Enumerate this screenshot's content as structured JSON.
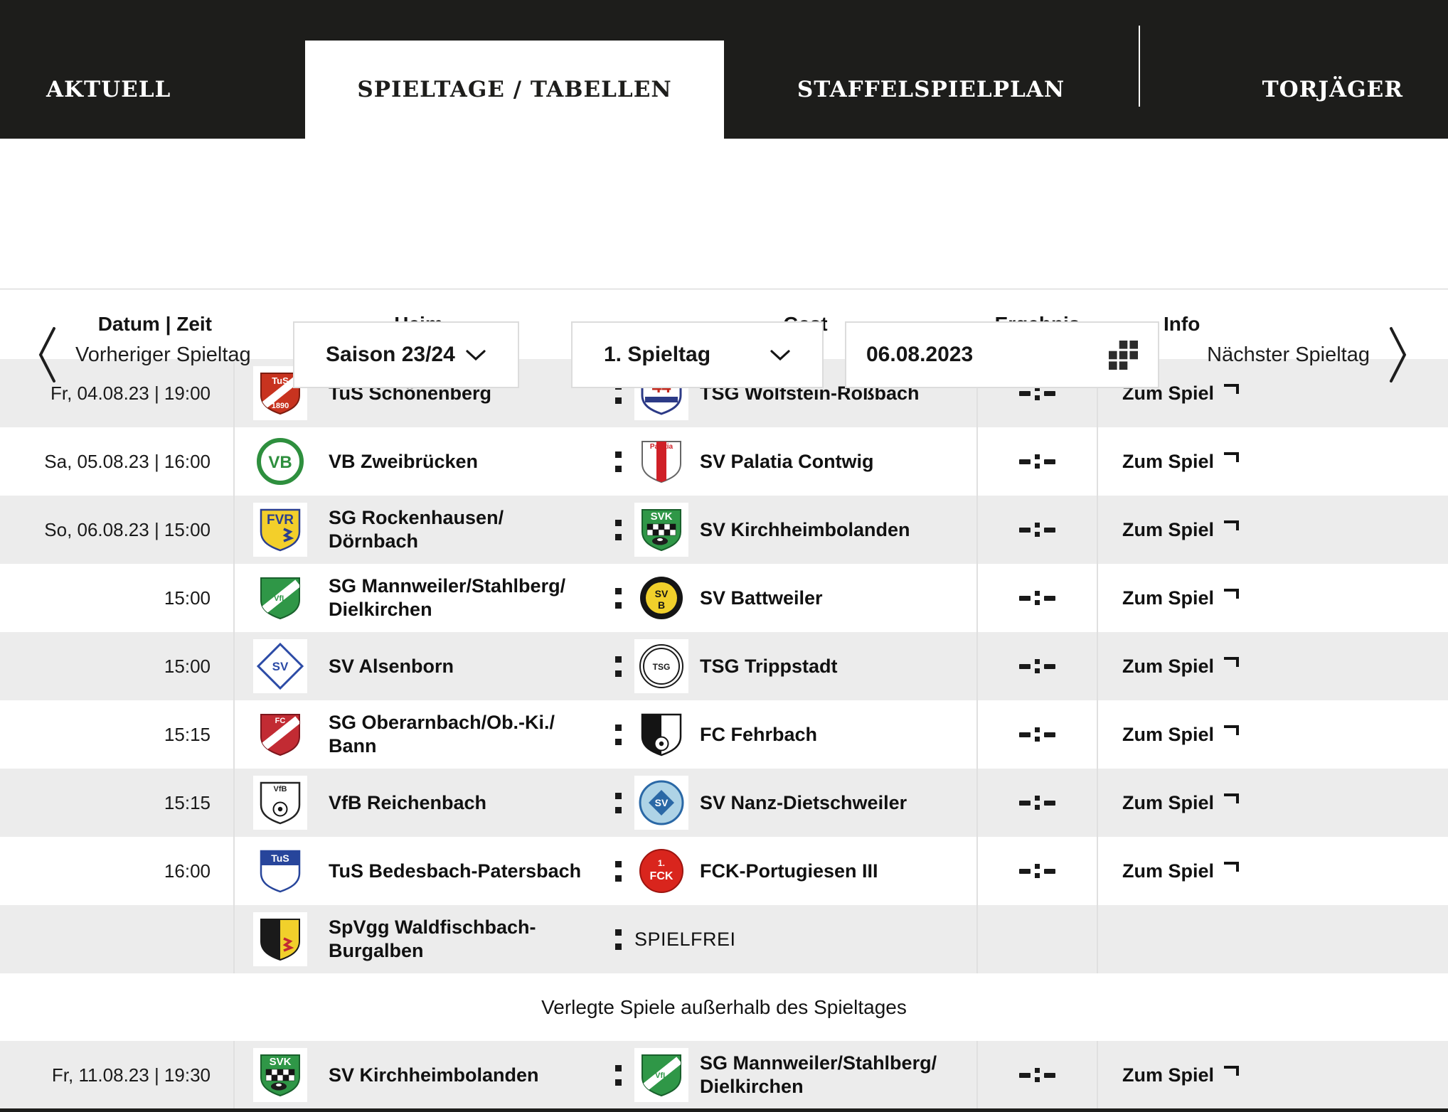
{
  "tabs": [
    {
      "label": "AKTUELL",
      "active": false
    },
    {
      "label": "SPIELTAGE / TABELLEN",
      "active": true
    },
    {
      "label": "STAFFELSPIELPLAN",
      "active": false
    },
    {
      "label": "TORJÄGER",
      "active": false
    }
  ],
  "nav": {
    "prev_label": "Vorheriger Spieltag",
    "next_label": "Nächster Spieltag",
    "season_value": "Saison 23/24",
    "matchday_value": "1. Spieltag",
    "date_value": "06.08.2023"
  },
  "icons": {
    "prev": "chevron-left-icon",
    "next": "chevron-right-icon",
    "select": "chevron-down-icon",
    "date": "calendar-grid-icon",
    "match_link": "corner-arrow-icon",
    "versus": "colon-separator"
  },
  "colors": {
    "header_bg": "#1d1d1b",
    "row_alt": "#ececec",
    "divider": "#e0e0e0",
    "border": "#dcdcdc",
    "text": "#161616"
  },
  "table": {
    "columns": {
      "datum": "Datum | Zeit",
      "heim": "Heim",
      "gast": "Gast",
      "ergebnis": "Ergebnis",
      "info": "Info"
    },
    "link_label": "Zum Spiel",
    "result_placeholder": "-:-",
    "spielfrei_label": "SPIELFREI",
    "postponed_heading": "Verlegte Spiele außerhalb des Spieltages",
    "rows": [
      {
        "datetime": "Fr, 04.08.23 | 19:00",
        "home": "TuS Schönenberg",
        "home_crest": "schoenenberg",
        "guest": "TSG Wolfstein-Roßbach",
        "guest_crest": "wolfstein",
        "result": "-:-",
        "info": "Zum Spiel"
      },
      {
        "datetime": "Sa, 05.08.23 | 16:00",
        "home": "VB Zweibrücken",
        "home_crest": "zweibruecken",
        "guest": "SV Palatia Contwig",
        "guest_crest": "palatia",
        "result": "-:-",
        "info": "Zum Spiel"
      },
      {
        "datetime": "So, 06.08.23 | 15:00",
        "home": "SG Rockenhausen/\nDörnbach",
        "home_crest": "rockenhausen",
        "guest": "SV Kirchheimbolanden",
        "guest_crest": "kirchheimbolanden",
        "result": "-:-",
        "info": "Zum Spiel"
      },
      {
        "datetime": "15:00",
        "home": "SG Mannweiler/Stahlberg/\nDielkirchen",
        "home_crest": "mannweiler",
        "guest": "SV Battweiler",
        "guest_crest": "battweiler",
        "result": "-:-",
        "info": "Zum Spiel"
      },
      {
        "datetime": "15:00",
        "home": "SV Alsenborn",
        "home_crest": "alsenborn",
        "guest": "TSG Trippstadt",
        "guest_crest": "trippstadt",
        "result": "-:-",
        "info": "Zum Spiel"
      },
      {
        "datetime": "15:15",
        "home": "SG Oberarnbach/Ob.-Ki./\nBann",
        "home_crest": "oberarnbach",
        "guest": "FC Fehrbach",
        "guest_crest": "fehrbach",
        "result": "-:-",
        "info": "Zum Spiel"
      },
      {
        "datetime": "15:15",
        "home": "VfB Reichenbach",
        "home_crest": "reichenbach",
        "guest": "SV Nanz-Dietschweiler",
        "guest_crest": "nanz",
        "result": "-:-",
        "info": "Zum Spiel"
      },
      {
        "datetime": "16:00",
        "home": "TuS Bedesbach-Patersbach",
        "home_crest": "bedesbach",
        "guest": "FCK-Portugiesen III",
        "guest_crest": "fck",
        "result": "-:-",
        "info": "Zum Spiel"
      },
      {
        "datetime": "",
        "home": "SpVgg Waldfischbach-\nBurgalben",
        "home_crest": "waldfischbach",
        "guest": "SPIELFREI",
        "guest_crest": null,
        "spielfrei": true,
        "result": "",
        "info": ""
      }
    ],
    "postponed_rows": [
      {
        "datetime": "Fr, 11.08.23 | 19:30",
        "home": "SV Kirchheimbolanden",
        "home_crest": "kirchheimbolanden",
        "guest": "SG Mannweiler/Stahlberg/\nDielkirchen",
        "guest_crest": "mannweiler",
        "result": "-:-",
        "info": "Zum Spiel"
      }
    ]
  },
  "crests": {
    "schoenenberg": {
      "shape": "shield",
      "bg": "#c8331f",
      "stroke": "#7d1d10",
      "sw": 2,
      "decos": [
        {
          "t": "diag",
          "c": "#ffffff",
          "w": 11
        }
      ],
      "labels": [
        {
          "t": "TuS",
          "c": "#ffffff",
          "s": 13,
          "y": 20
        },
        {
          "t": "1890",
          "c": "#ffffff",
          "s": 11,
          "y": 54
        }
      ]
    },
    "wolfstein": {
      "shape": "shield",
      "bg": "#ffffff",
      "stroke": "#2c3a86",
      "sw": 3,
      "decos": [
        {
          "t": "bandmid",
          "c": "#2c3a86"
        }
      ],
      "labels": [
        {
          "t": "44",
          "c": "#c2281d",
          "s": 24,
          "y": 32
        }
      ]
    },
    "zweibruecken": {
      "shape": "circle",
      "bg": "#ffffff",
      "stroke": "#2e8f3e",
      "sw": 6,
      "decos": [],
      "labels": [
        {
          "t": "VB",
          "c": "#2e8f3e",
          "s": 24,
          "y": 42
        }
      ]
    },
    "palatia": {
      "shape": "shield",
      "bg": "#ffffff",
      "stroke": "#666666",
      "sw": 2,
      "decos": [
        {
          "t": "vstripe",
          "c": "#cf2027"
        }
      ],
      "labels": [
        {
          "t": "Palatia",
          "c": "#cf2027",
          "s": 10,
          "y": 15
        }
      ]
    },
    "rockenhausen": {
      "shape": "shield",
      "bg": "#f3cf2a",
      "stroke": "#2b3f8e",
      "sw": 2.5,
      "decos": [
        {
          "t": "mark",
          "c": "#2b3f8e"
        }
      ],
      "labels": [
        {
          "t": "FVR",
          "c": "#2b3f8e",
          "s": 19,
          "y": 25
        }
      ]
    },
    "kirchheimbolanden": {
      "shape": "shield",
      "bg": "#2f9747",
      "stroke": "#19602c",
      "sw": 2,
      "decos": [
        {
          "t": "checker"
        },
        {
          "t": "badger"
        }
      ],
      "labels": [
        {
          "t": "SVK",
          "c": "#ffffff",
          "s": 15,
          "y": 19
        }
      ]
    },
    "mannweiler": {
      "shape": "shield",
      "bg": "#2f9747",
      "stroke": "#19602c",
      "sw": 2,
      "decos": [
        {
          "t": "diag",
          "c": "#ffffff",
          "w": 12
        }
      ],
      "labels": [
        {
          "t": "VfL",
          "c": "#2f9747",
          "s": 11,
          "y": 37
        }
      ]
    },
    "battweiler": {
      "shape": "circle",
      "bg": "#151515",
      "stroke": "none",
      "sw": 0,
      "decos": [
        {
          "t": "disc",
          "c": "#f1d02b",
          "r": 22
        }
      ],
      "labels": [
        {
          "t": "SV",
          "c": "#151515",
          "s": 14,
          "y": 32
        },
        {
          "t": "B",
          "c": "#151515",
          "s": 14,
          "y": 48
        }
      ]
    },
    "alsenborn": {
      "shape": "diamond",
      "bg": "#ffffff",
      "stroke": "#2c4ba6",
      "sw": 3,
      "decos": [],
      "labels": [
        {
          "t": "SV",
          "c": "#2c4ba6",
          "s": 17,
          "y": 39
        }
      ]
    },
    "trippstadt": {
      "shape": "circle",
      "bg": "#ffffff",
      "stroke": "#1b1b1b",
      "sw": 2,
      "decos": [
        {
          "t": "ring",
          "c": "#1b1b1b",
          "r": 25
        }
      ],
      "labels": [
        {
          "t": "TSG",
          "c": "#1b1b1b",
          "s": 12,
          "y": 38
        }
      ]
    },
    "oberarnbach": {
      "shape": "shield",
      "bg": "#c22b33",
      "stroke": "#7d161d",
      "sw": 2,
      "decos": [
        {
          "t": "diag",
          "c": "#ffffff",
          "w": 12
        }
      ],
      "labels": [
        {
          "t": "FC",
          "c": "#ffffff",
          "s": 11,
          "y": 17
        }
      ]
    },
    "fehrbach": {
      "shape": "shield",
      "bg": "#ffffff",
      "stroke": "#141414",
      "sw": 2.5,
      "decos": [
        {
          "t": "half",
          "c": "#141414"
        },
        {
          "t": "ball",
          "y": 46
        }
      ],
      "labels": []
    },
    "reichenbach": {
      "shape": "shield",
      "bg": "#ffffff",
      "stroke": "#242424",
      "sw": 2.5,
      "decos": [
        {
          "t": "ball",
          "y": 42
        }
      ],
      "labels": [
        {
          "t": "VfB",
          "c": "#242424",
          "s": 11,
          "y": 17
        }
      ]
    },
    "nanz": {
      "shape": "circle",
      "bg": "#aed3e6",
      "stroke": "#2a68a6",
      "sw": 3,
      "decos": [
        {
          "t": "idiamond",
          "c": "#2a68a6"
        }
      ],
      "labels": [
        {
          "t": "SV",
          "c": "#ffffff",
          "s": 14,
          "y": 38
        }
      ]
    },
    "bedesbach": {
      "shape": "shield",
      "bg": "#ffffff",
      "stroke": "#27459b",
      "sw": 2.5,
      "decos": [
        {
          "t": "topband",
          "c": "#27459b",
          "h": 20
        }
      ],
      "labels": [
        {
          "t": "TuS",
          "c": "#ffffff",
          "s": 14,
          "y": 20
        }
      ]
    },
    "fck": {
      "shape": "circle",
      "bg": "#d9251d",
      "stroke": "#9d140f",
      "sw": 2,
      "decos": [],
      "labels": [
        {
          "t": "1.",
          "c": "#ffffff",
          "s": 12,
          "y": 26
        },
        {
          "t": "FCK",
          "c": "#ffffff",
          "s": 16,
          "y": 45
        }
      ]
    },
    "waldfischbach": {
      "shape": "shield",
      "bg": "#f1d02b",
      "stroke": "#1a1a1a",
      "sw": 2,
      "decos": [
        {
          "t": "half",
          "c": "#1a1a1a"
        },
        {
          "t": "mark",
          "c": "#c22b33"
        }
      ],
      "labels": []
    }
  }
}
